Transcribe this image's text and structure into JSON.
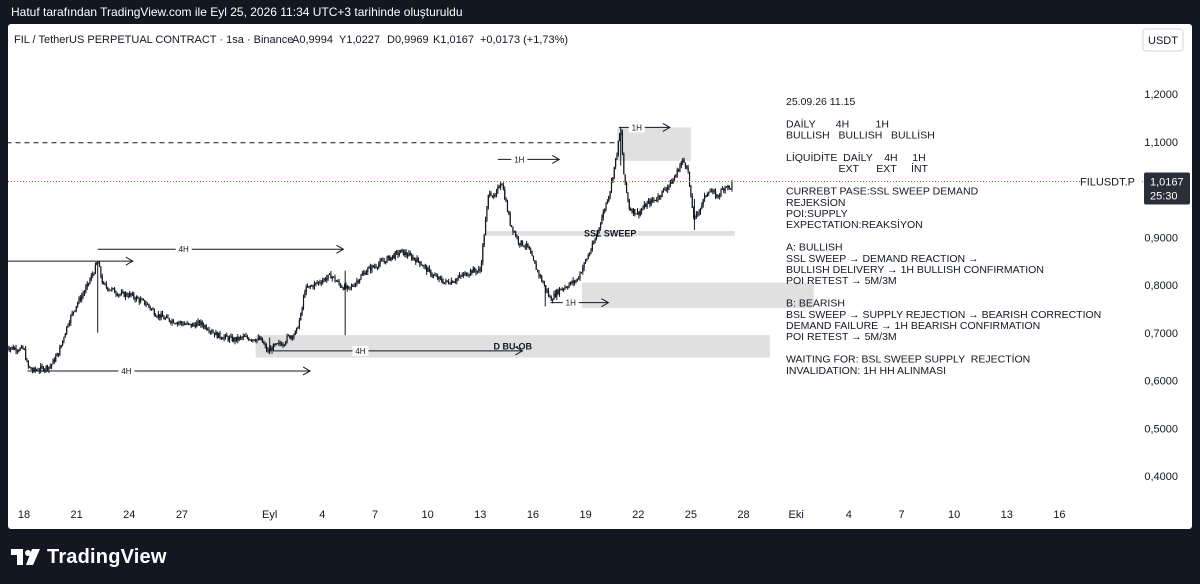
{
  "header": {
    "caption": "Hatuf tarafından TradingView.com ile Eyl 25, 2026 11:34 UTC+3 tarihinde oluşturuldu"
  },
  "legend": {
    "symbol": "FIL / TetherUS PERPETUAL CONTRACT · 1sa · Binance",
    "o": "A0,9994",
    "h": "Y1,0227",
    "l": "D0,9969",
    "c": "K1,0167",
    "chg": "+0,0173 (+1,73%)"
  },
  "currency_button": "USDT",
  "brand": {
    "name": "TradingView",
    "logo_icon": "tradingview-logo-icon"
  },
  "colors": {
    "price_line": "#ff5722",
    "zone": "#e0e0e0",
    "badge": "#2a2e39",
    "candle": "#131722"
  },
  "price_label": {
    "symbol": "FILUSDT.P",
    "value": "1,0167",
    "countdown": "25:30"
  },
  "chart_data": {
    "type": "candlestick",
    "timeframe": "1sa",
    "ylim": [
      0.36,
      1.26
    ],
    "y_ticks": [
      {
        "v": 1.2,
        "label": "1,2000"
      },
      {
        "v": 1.1,
        "label": "1,1000"
      },
      {
        "v": 0.9,
        "label": "0,9000"
      },
      {
        "v": 0.8,
        "label": "0,8000"
      },
      {
        "v": 0.7,
        "label": "0,7000"
      },
      {
        "v": 0.6,
        "label": "0,6000"
      },
      {
        "v": 0.5,
        "label": "0,5000"
      },
      {
        "v": 0.4,
        "label": "0,4000"
      }
    ],
    "x_ticks": [
      {
        "d": 0,
        "label": "18"
      },
      {
        "d": 3,
        "label": "21"
      },
      {
        "d": 6,
        "label": "24"
      },
      {
        "d": 9,
        "label": "27"
      },
      {
        "d": 14,
        "label": "Eyl"
      },
      {
        "d": 17,
        "label": "4"
      },
      {
        "d": 20,
        "label": "7"
      },
      {
        "d": 23,
        "label": "10"
      },
      {
        "d": 26,
        "label": "13"
      },
      {
        "d": 29,
        "label": "16"
      },
      {
        "d": 32,
        "label": "19"
      },
      {
        "d": 35,
        "label": "22"
      },
      {
        "d": 38,
        "label": "25"
      },
      {
        "d": 41,
        "label": "28"
      },
      {
        "d": 44,
        "label": "Eki"
      },
      {
        "d": 47,
        "label": "4"
      },
      {
        "d": 50,
        "label": "7"
      },
      {
        "d": 53,
        "label": "10"
      },
      {
        "d": 56,
        "label": "13"
      },
      {
        "d": 59,
        "label": "16"
      }
    ],
    "current_price": 1.0167,
    "price_path": [
      [
        -1,
        0.67
      ],
      [
        0,
        0.665
      ],
      [
        0.2,
        0.63
      ],
      [
        0.5,
        0.62
      ],
      [
        1,
        0.625
      ],
      [
        1.5,
        0.63
      ],
      [
        2,
        0.66
      ],
      [
        2.5,
        0.72
      ],
      [
        3,
        0.76
      ],
      [
        3.5,
        0.79
      ],
      [
        4,
        0.83
      ],
      [
        4.2,
        0.85
      ],
      [
        4.5,
        0.8
      ],
      [
        5,
        0.79
      ],
      [
        5.5,
        0.78
      ],
      [
        6,
        0.78
      ],
      [
        6.5,
        0.77
      ],
      [
        7,
        0.76
      ],
      [
        7.5,
        0.74
      ],
      [
        8,
        0.73
      ],
      [
        8.5,
        0.725
      ],
      [
        9,
        0.72
      ],
      [
        9.5,
        0.715
      ],
      [
        10,
        0.72
      ],
      [
        10.5,
        0.71
      ],
      [
        11,
        0.695
      ],
      [
        11.5,
        0.69
      ],
      [
        12,
        0.685
      ],
      [
        12.5,
        0.69
      ],
      [
        13,
        0.688
      ],
      [
        13.5,
        0.685
      ],
      [
        13.9,
        0.66
      ],
      [
        14.2,
        0.67
      ],
      [
        14.8,
        0.68
      ],
      [
        15,
        0.69
      ],
      [
        15.5,
        0.7
      ],
      [
        15.8,
        0.74
      ],
      [
        16,
        0.79
      ],
      [
        16.5,
        0.8
      ],
      [
        17,
        0.81
      ],
      [
        17.5,
        0.82
      ],
      [
        18,
        0.8
      ],
      [
        18.5,
        0.79
      ],
      [
        19,
        0.81
      ],
      [
        19.5,
        0.83
      ],
      [
        20,
        0.84
      ],
      [
        20.5,
        0.85
      ],
      [
        21,
        0.86
      ],
      [
        21.5,
        0.87
      ],
      [
        22,
        0.86
      ],
      [
        22.5,
        0.85
      ],
      [
        23,
        0.83
      ],
      [
        23.5,
        0.815
      ],
      [
        24,
        0.805
      ],
      [
        24.5,
        0.81
      ],
      [
        25,
        0.82
      ],
      [
        25.5,
        0.83
      ],
      [
        26,
        0.83
      ],
      [
        26.2,
        0.9
      ],
      [
        26.5,
        1.0
      ],
      [
        26.8,
        0.98
      ],
      [
        27.2,
        1.02
      ],
      [
        27.7,
        0.93
      ],
      [
        28.2,
        0.89
      ],
      [
        28.7,
        0.88
      ],
      [
        29,
        0.85
      ],
      [
        29.5,
        0.81
      ],
      [
        30,
        0.77
      ],
      [
        30.5,
        0.79
      ],
      [
        31,
        0.8
      ],
      [
        31.5,
        0.81
      ],
      [
        32,
        0.85
      ],
      [
        32.5,
        0.89
      ],
      [
        33,
        0.95
      ],
      [
        33.4,
        1.0
      ],
      [
        33.8,
        1.08
      ],
      [
        34,
        1.13
      ],
      [
        34.2,
        1.02
      ],
      [
        34.5,
        0.96
      ],
      [
        35,
        0.95
      ],
      [
        35.5,
        0.97
      ],
      [
        36,
        0.98
      ],
      [
        36.5,
        1.0
      ],
      [
        37,
        1.02
      ],
      [
        37.5,
        1.06
      ],
      [
        37.8,
        1.05
      ],
      [
        38,
        0.98
      ],
      [
        38.2,
        0.935
      ],
      [
        38.5,
        0.96
      ],
      [
        39,
        1.0
      ],
      [
        39.5,
        0.985
      ],
      [
        40,
        1.01
      ],
      [
        40.2,
        1.0
      ],
      [
        40.4,
        1.0167
      ]
    ],
    "zones": [
      {
        "d1": 33.8,
        "d2": 38.0,
        "top": 1.13,
        "bottom": 1.06,
        "label": ""
      },
      {
        "d1": 26.3,
        "d2": 40.5,
        "top": 0.913,
        "bottom": 0.903,
        "label": "SSL SWEEP"
      },
      {
        "d1": 31.8,
        "d2": 45.0,
        "top": 0.805,
        "bottom": 0.752,
        "label": ""
      },
      {
        "d1": 13.2,
        "d2": 42.5,
        "top": 0.695,
        "bottom": 0.648,
        "label": "D BU-OB"
      }
    ],
    "dashed_level": {
      "d1": -1,
      "d2": 33.8,
      "y": 1.098
    },
    "arrows": [
      {
        "d1": -1,
        "d2": 6.2,
        "y": 0.85,
        "label": ""
      },
      {
        "d1": 4.2,
        "d2": 18.2,
        "y": 0.875,
        "label": "4H"
      },
      {
        "d1": 0.2,
        "d2": 16.3,
        "y": 0.62,
        "label": "4H"
      },
      {
        "d1": 14.2,
        "d2": 28.4,
        "y": 0.662,
        "label": "4H"
      },
      {
        "d1": 27.0,
        "d2": 30.5,
        "y": 1.063,
        "label": "1H"
      },
      {
        "d1": 33.9,
        "d2": 36.8,
        "y": 1.13,
        "label": "1H"
      },
      {
        "d1": 30.0,
        "d2": 33.3,
        "y": 0.763,
        "label": "1H"
      }
    ],
    "annotations": [
      {
        "row": 0,
        "text": "25.09.26 11.15"
      },
      {
        "row": 2,
        "text": "DAİLY       4H         1H"
      },
      {
        "row": 3,
        "text": "BULLISH   BULLISH   BULLİSH"
      },
      {
        "row": 5,
        "text": "LİQUİDİTE  DAİLY    4H     1H"
      },
      {
        "row": 6,
        "text": "                  EXT      EXT     İNT"
      },
      {
        "row": 8,
        "text": "CURREBT PASE:SSL SWEEP DEMAND"
      },
      {
        "row": 9,
        "text": "REJEKSİON"
      },
      {
        "row": 10,
        "text": "POI:SUPPLY"
      },
      {
        "row": 11,
        "text": "EXPECTATION:REAKSİYON"
      },
      {
        "row": 13,
        "text": "A: BULLISH"
      },
      {
        "row": 14,
        "text": "SSL SWEEP → DEMAND REACTION →"
      },
      {
        "row": 15,
        "text": "BULLISH DELIVERY → 1H BULLISH CONFIRMATION"
      },
      {
        "row": 16,
        "text": "POI RETEST → 5M/3M"
      },
      {
        "row": 18,
        "text": "B: BEARISH"
      },
      {
        "row": 19,
        "text": "BSL SWEEP → SUPPLY REJECTION → BEARISH CORRECTION"
      },
      {
        "row": 20,
        "text": "DEMAND FAILURE → 1H BEARISH CONFIRMATION"
      },
      {
        "row": 21,
        "text": "POI RETEST → 5M/3M"
      },
      {
        "row": 23,
        "text": "WAITING FOR: BSL SWEEP SUPPLY  REJECTİON"
      },
      {
        "row": 24,
        "text": "INVALIDATION: 1H HH ALINMASI"
      }
    ]
  }
}
